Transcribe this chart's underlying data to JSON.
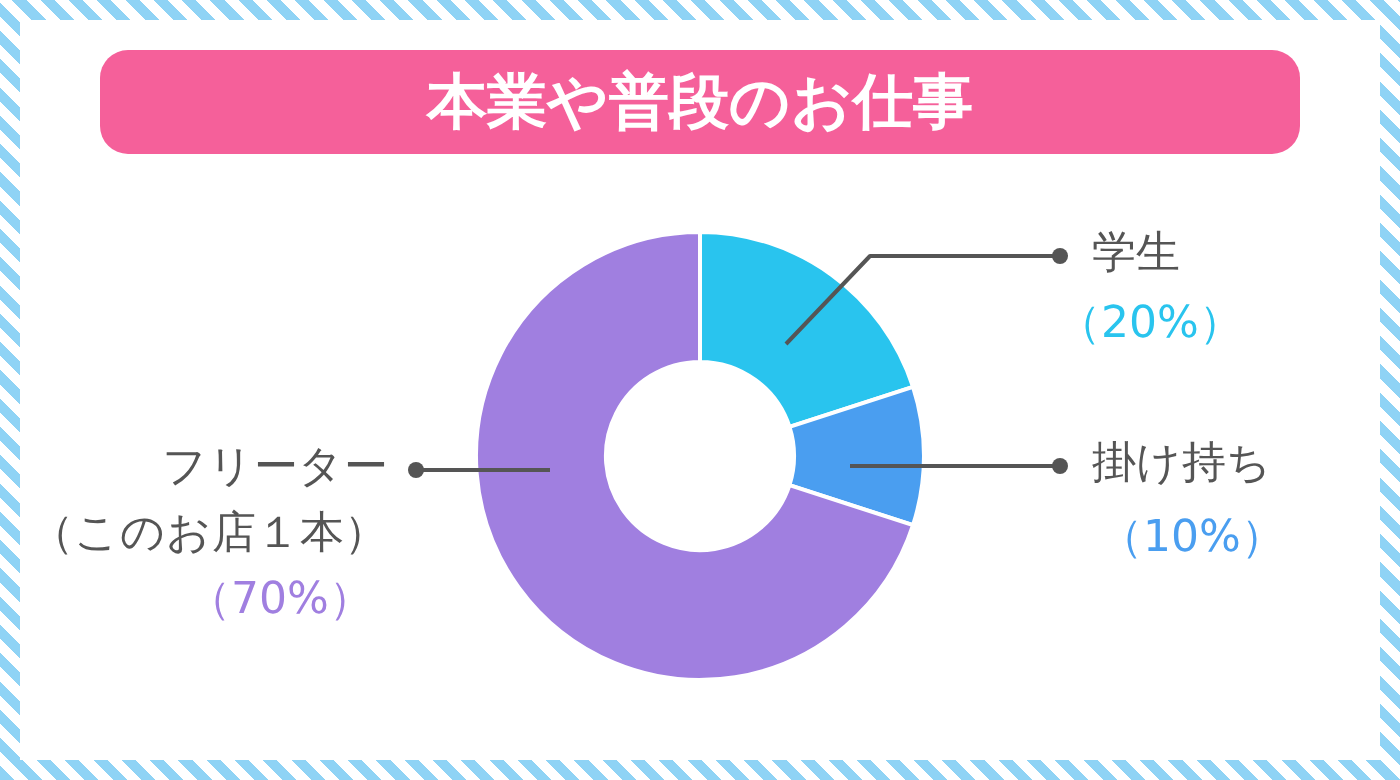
{
  "chart_data": {
    "type": "donut",
    "title": "本業や普段のお仕事",
    "categories": [
      "学生",
      "掛け持ち",
      "フリーター（このお店１本）"
    ],
    "values": [
      20,
      10,
      70
    ],
    "colors": [
      "#29c4ee",
      "#4a9ef0",
      "#a07fe0"
    ],
    "value_labels": [
      "（20%）",
      "（10%）",
      "（70%）"
    ],
    "legend": false
  }
}
